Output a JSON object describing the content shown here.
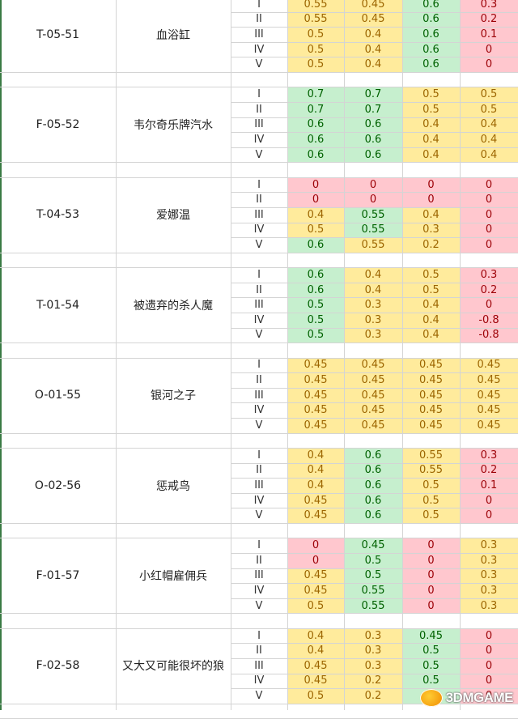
{
  "colors": {
    "yellow_fill": "#ffeb9c",
    "yellow_text": "#9c6500",
    "green_fill": "#c6efce",
    "green_text": "#006100",
    "red_fill": "#ffc7ce",
    "red_text": "#9c0006"
  },
  "levels": [
    "I",
    "II",
    "III",
    "IV",
    "V"
  ],
  "records": [
    {
      "code": "T-05-51",
      "name": "血浴缸",
      "rows": [
        [
          {
            "v": "0.55",
            "c": "y"
          },
          {
            "v": "0.45",
            "c": "y"
          },
          {
            "v": "0.6",
            "c": "g"
          },
          {
            "v": "0.3",
            "c": "r"
          }
        ],
        [
          {
            "v": "0.55",
            "c": "y"
          },
          {
            "v": "0.45",
            "c": "y"
          },
          {
            "v": "0.6",
            "c": "g"
          },
          {
            "v": "0.2",
            "c": "r"
          }
        ],
        [
          {
            "v": "0.5",
            "c": "y"
          },
          {
            "v": "0.4",
            "c": "y"
          },
          {
            "v": "0.6",
            "c": "g"
          },
          {
            "v": "0.1",
            "c": "r"
          }
        ],
        [
          {
            "v": "0.5",
            "c": "y"
          },
          {
            "v": "0.4",
            "c": "y"
          },
          {
            "v": "0.6",
            "c": "g"
          },
          {
            "v": "0",
            "c": "r"
          }
        ],
        [
          {
            "v": "0.5",
            "c": "y"
          },
          {
            "v": "0.4",
            "c": "y"
          },
          {
            "v": "0.6",
            "c": "g"
          },
          {
            "v": "0",
            "c": "r"
          }
        ]
      ]
    },
    {
      "code": "F-05-52",
      "name": "韦尔奇乐牌汽水",
      "rows": [
        [
          {
            "v": "0.7",
            "c": "g"
          },
          {
            "v": "0.7",
            "c": "g"
          },
          {
            "v": "0.5",
            "c": "y"
          },
          {
            "v": "0.5",
            "c": "y"
          }
        ],
        [
          {
            "v": "0.7",
            "c": "g"
          },
          {
            "v": "0.7",
            "c": "g"
          },
          {
            "v": "0.5",
            "c": "y"
          },
          {
            "v": "0.5",
            "c": "y"
          }
        ],
        [
          {
            "v": "0.6",
            "c": "g"
          },
          {
            "v": "0.6",
            "c": "g"
          },
          {
            "v": "0.4",
            "c": "y"
          },
          {
            "v": "0.4",
            "c": "y"
          }
        ],
        [
          {
            "v": "0.6",
            "c": "g"
          },
          {
            "v": "0.6",
            "c": "g"
          },
          {
            "v": "0.4",
            "c": "y"
          },
          {
            "v": "0.4",
            "c": "y"
          }
        ],
        [
          {
            "v": "0.6",
            "c": "g"
          },
          {
            "v": "0.6",
            "c": "g"
          },
          {
            "v": "0.4",
            "c": "y"
          },
          {
            "v": "0.4",
            "c": "y"
          }
        ]
      ]
    },
    {
      "code": "T-04-53",
      "name": "爱娜温",
      "rows": [
        [
          {
            "v": "0",
            "c": "r"
          },
          {
            "v": "0",
            "c": "r"
          },
          {
            "v": "0",
            "c": "r"
          },
          {
            "v": "0",
            "c": "r"
          }
        ],
        [
          {
            "v": "0",
            "c": "r"
          },
          {
            "v": "0",
            "c": "r"
          },
          {
            "v": "0",
            "c": "r"
          },
          {
            "v": "0",
            "c": "r"
          }
        ],
        [
          {
            "v": "0.4",
            "c": "y"
          },
          {
            "v": "0.55",
            "c": "g"
          },
          {
            "v": "0.4",
            "c": "y"
          },
          {
            "v": "0",
            "c": "r"
          }
        ],
        [
          {
            "v": "0.5",
            "c": "y"
          },
          {
            "v": "0.55",
            "c": "g"
          },
          {
            "v": "0.3",
            "c": "y"
          },
          {
            "v": "0",
            "c": "r"
          }
        ],
        [
          {
            "v": "0.6",
            "c": "g"
          },
          {
            "v": "0.55",
            "c": "y"
          },
          {
            "v": "0.2",
            "c": "y"
          },
          {
            "v": "0",
            "c": "r"
          }
        ]
      ]
    },
    {
      "code": "T-01-54",
      "name": "被遗弃的杀人魔",
      "rows": [
        [
          {
            "v": "0.6",
            "c": "g"
          },
          {
            "v": "0.4",
            "c": "y"
          },
          {
            "v": "0.5",
            "c": "y"
          },
          {
            "v": "0.3",
            "c": "r"
          }
        ],
        [
          {
            "v": "0.6",
            "c": "g"
          },
          {
            "v": "0.4",
            "c": "y"
          },
          {
            "v": "0.5",
            "c": "y"
          },
          {
            "v": "0.2",
            "c": "r"
          }
        ],
        [
          {
            "v": "0.5",
            "c": "g"
          },
          {
            "v": "0.3",
            "c": "y"
          },
          {
            "v": "0.4",
            "c": "y"
          },
          {
            "v": "0",
            "c": "r"
          }
        ],
        [
          {
            "v": "0.5",
            "c": "g"
          },
          {
            "v": "0.3",
            "c": "y"
          },
          {
            "v": "0.4",
            "c": "y"
          },
          {
            "v": "-0.8",
            "c": "r"
          }
        ],
        [
          {
            "v": "0.5",
            "c": "g"
          },
          {
            "v": "0.3",
            "c": "y"
          },
          {
            "v": "0.4",
            "c": "y"
          },
          {
            "v": "-0.8",
            "c": "r"
          }
        ]
      ]
    },
    {
      "code": "O-01-55",
      "name": "银河之子",
      "rows": [
        [
          {
            "v": "0.45",
            "c": "y"
          },
          {
            "v": "0.45",
            "c": "y"
          },
          {
            "v": "0.45",
            "c": "y"
          },
          {
            "v": "0.45",
            "c": "y"
          }
        ],
        [
          {
            "v": "0.45",
            "c": "y"
          },
          {
            "v": "0.45",
            "c": "y"
          },
          {
            "v": "0.45",
            "c": "y"
          },
          {
            "v": "0.45",
            "c": "y"
          }
        ],
        [
          {
            "v": "0.45",
            "c": "y"
          },
          {
            "v": "0.45",
            "c": "y"
          },
          {
            "v": "0.45",
            "c": "y"
          },
          {
            "v": "0.45",
            "c": "y"
          }
        ],
        [
          {
            "v": "0.45",
            "c": "y"
          },
          {
            "v": "0.45",
            "c": "y"
          },
          {
            "v": "0.45",
            "c": "y"
          },
          {
            "v": "0.45",
            "c": "y"
          }
        ],
        [
          {
            "v": "0.45",
            "c": "y"
          },
          {
            "v": "0.45",
            "c": "y"
          },
          {
            "v": "0.45",
            "c": "y"
          },
          {
            "v": "0.45",
            "c": "y"
          }
        ]
      ]
    },
    {
      "code": "O-02-56",
      "name": "惩戒鸟",
      "rows": [
        [
          {
            "v": "0.4",
            "c": "y"
          },
          {
            "v": "0.6",
            "c": "g"
          },
          {
            "v": "0.55",
            "c": "y"
          },
          {
            "v": "0.3",
            "c": "r"
          }
        ],
        [
          {
            "v": "0.4",
            "c": "y"
          },
          {
            "v": "0.6",
            "c": "g"
          },
          {
            "v": "0.55",
            "c": "y"
          },
          {
            "v": "0.2",
            "c": "r"
          }
        ],
        [
          {
            "v": "0.4",
            "c": "y"
          },
          {
            "v": "0.6",
            "c": "g"
          },
          {
            "v": "0.5",
            "c": "y"
          },
          {
            "v": "0.1",
            "c": "r"
          }
        ],
        [
          {
            "v": "0.45",
            "c": "y"
          },
          {
            "v": "0.6",
            "c": "g"
          },
          {
            "v": "0.5",
            "c": "y"
          },
          {
            "v": "0",
            "c": "r"
          }
        ],
        [
          {
            "v": "0.45",
            "c": "y"
          },
          {
            "v": "0.6",
            "c": "g"
          },
          {
            "v": "0.5",
            "c": "y"
          },
          {
            "v": "0",
            "c": "r"
          }
        ]
      ]
    },
    {
      "code": "F-01-57",
      "name": "小红帽雇佣兵",
      "rows": [
        [
          {
            "v": "0",
            "c": "r"
          },
          {
            "v": "0.45",
            "c": "g"
          },
          {
            "v": "0",
            "c": "r"
          },
          {
            "v": "0.3",
            "c": "y"
          }
        ],
        [
          {
            "v": "0",
            "c": "r"
          },
          {
            "v": "0.5",
            "c": "g"
          },
          {
            "v": "0",
            "c": "r"
          },
          {
            "v": "0.3",
            "c": "y"
          }
        ],
        [
          {
            "v": "0.45",
            "c": "y"
          },
          {
            "v": "0.5",
            "c": "g"
          },
          {
            "v": "0",
            "c": "r"
          },
          {
            "v": "0.3",
            "c": "y"
          }
        ],
        [
          {
            "v": "0.45",
            "c": "y"
          },
          {
            "v": "0.55",
            "c": "g"
          },
          {
            "v": "0",
            "c": "r"
          },
          {
            "v": "0.3",
            "c": "y"
          }
        ],
        [
          {
            "v": "0.5",
            "c": "y"
          },
          {
            "v": "0.55",
            "c": "g"
          },
          {
            "v": "0",
            "c": "r"
          },
          {
            "v": "0.3",
            "c": "y"
          }
        ]
      ]
    },
    {
      "code": "F-02-58",
      "name": "又大又可能很坏的狼",
      "rows": [
        [
          {
            "v": "0.4",
            "c": "y"
          },
          {
            "v": "0.3",
            "c": "y"
          },
          {
            "v": "0.45",
            "c": "g"
          },
          {
            "v": "0",
            "c": "r"
          }
        ],
        [
          {
            "v": "0.4",
            "c": "y"
          },
          {
            "v": "0.3",
            "c": "y"
          },
          {
            "v": "0.5",
            "c": "g"
          },
          {
            "v": "0",
            "c": "r"
          }
        ],
        [
          {
            "v": "0.45",
            "c": "y"
          },
          {
            "v": "0.3",
            "c": "y"
          },
          {
            "v": "0.5",
            "c": "g"
          },
          {
            "v": "0",
            "c": "r"
          }
        ],
        [
          {
            "v": "0.45",
            "c": "y"
          },
          {
            "v": "0.2",
            "c": "y"
          },
          {
            "v": "0.5",
            "c": "g"
          },
          {
            "v": "0",
            "c": "r"
          }
        ],
        [
          {
            "v": "0.5",
            "c": "y"
          },
          {
            "v": "0.2",
            "c": "y"
          },
          {
            "v": "0.5",
            "c": "g"
          },
          {
            "v": "0",
            "c": "r"
          }
        ]
      ]
    }
  ],
  "watermark": {
    "text": "3DMGAME"
  }
}
